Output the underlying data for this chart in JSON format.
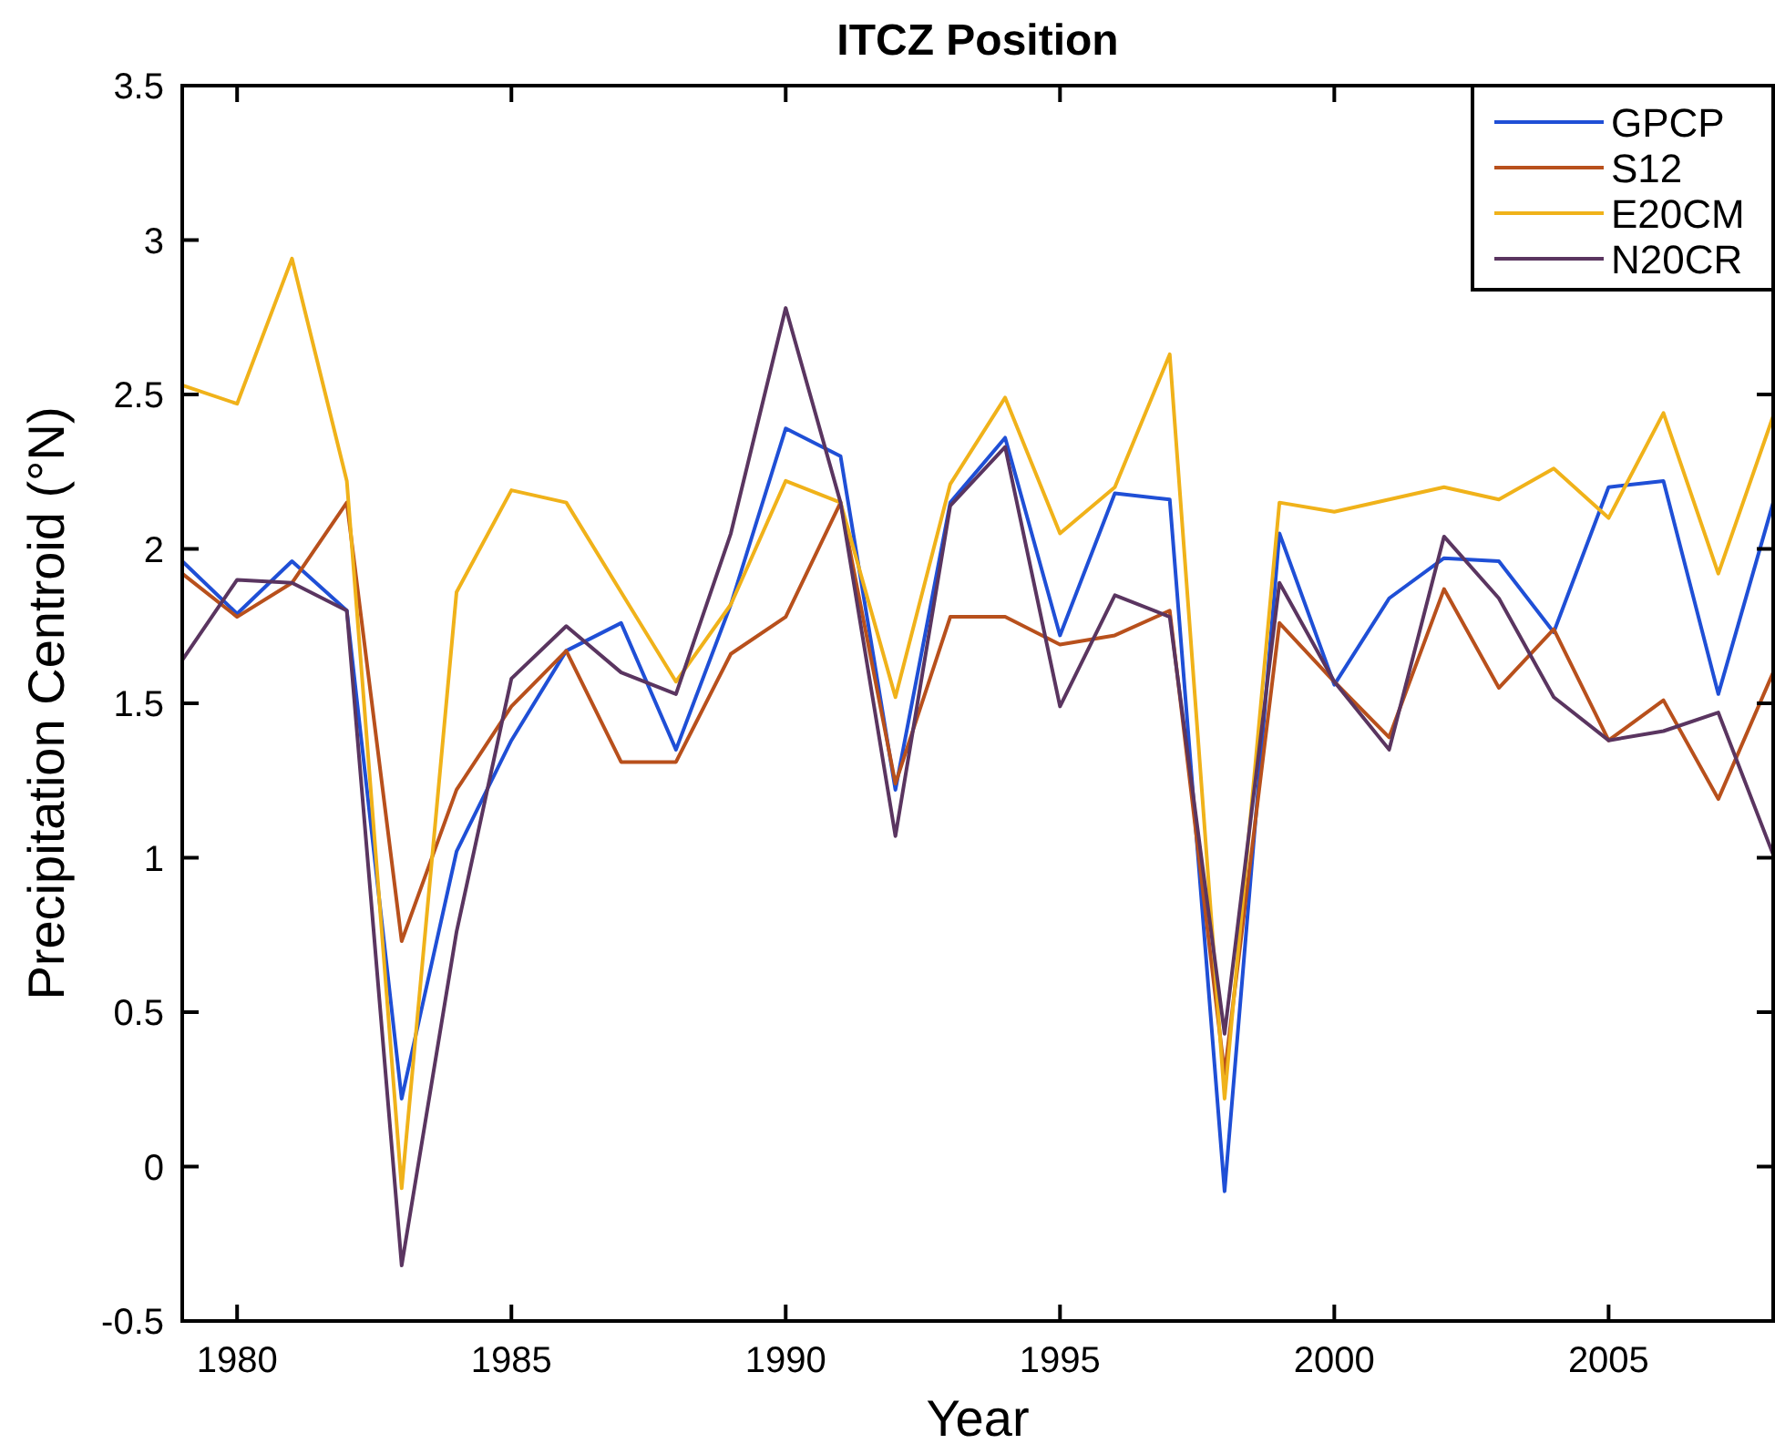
{
  "chart_data": {
    "type": "line",
    "title": "ITCZ Position",
    "xlabel": "Year",
    "ylabel": "Precipitation Centroid (°N)",
    "x": [
      1979,
      1980,
      1981,
      1982,
      1983,
      1984,
      1985,
      1986,
      1987,
      1988,
      1989,
      1990,
      1991,
      1992,
      1993,
      1994,
      1995,
      1996,
      1997,
      1998,
      1999,
      2000,
      2001,
      2002,
      2003,
      2004,
      2005,
      2006,
      2007,
      2008
    ],
    "series": [
      {
        "name": "GPCP",
        "color": "#1f4fd6",
        "values": [
          1.96,
          1.79,
          1.96,
          1.8,
          0.22,
          1.02,
          1.38,
          1.67,
          1.76,
          1.35,
          1.82,
          2.39,
          2.3,
          1.22,
          2.15,
          2.36,
          1.72,
          2.18,
          2.16,
          -0.08,
          2.05,
          1.56,
          1.84,
          1.97,
          1.96,
          1.73,
          2.2,
          2.22,
          1.53,
          2.15
        ]
      },
      {
        "name": "S12",
        "color": "#b8501c",
        "values": [
          1.92,
          1.78,
          1.89,
          2.15,
          0.73,
          1.22,
          1.49,
          1.67,
          1.31,
          1.31,
          1.66,
          1.78,
          2.15,
          1.24,
          1.78,
          1.78,
          1.69,
          1.72,
          1.8,
          0.3,
          1.76,
          1.57,
          1.39,
          1.87,
          1.55,
          1.74,
          1.38,
          1.51,
          1.19,
          1.6
        ]
      },
      {
        "name": "E20CM",
        "color": "#f0b21a",
        "values": [
          2.53,
          2.47,
          2.94,
          2.22,
          -0.07,
          1.86,
          2.19,
          2.15,
          1.86,
          1.57,
          1.82,
          2.22,
          2.15,
          1.52,
          2.21,
          2.49,
          2.05,
          2.2,
          2.63,
          0.22,
          2.15,
          2.12,
          2.16,
          2.2,
          2.16,
          2.26,
          2.1,
          2.44,
          1.92,
          2.43
        ]
      },
      {
        "name": "N20CR",
        "color": "#5a3560",
        "values": [
          1.64,
          1.9,
          1.89,
          1.8,
          -0.32,
          0.76,
          1.58,
          1.75,
          1.6,
          1.53,
          2.05,
          2.78,
          2.15,
          1.07,
          2.14,
          2.33,
          1.49,
          1.85,
          1.78,
          0.43,
          1.89,
          1.57,
          1.35,
          2.04,
          1.84,
          1.52,
          1.38,
          1.41,
          1.47,
          1.01
        ]
      }
    ],
    "xlim": [
      1979,
      2008
    ],
    "xticks": [
      1980,
      1985,
      1990,
      1995,
      2000,
      2005
    ],
    "ylim": [
      -0.5,
      3.5
    ],
    "yticks": [
      -0.5,
      0,
      0.5,
      1,
      1.5,
      2,
      2.5,
      3,
      3.5
    ],
    "legend": "top right",
    "grid": false,
    "marker": "none",
    "line_style": "solid"
  }
}
